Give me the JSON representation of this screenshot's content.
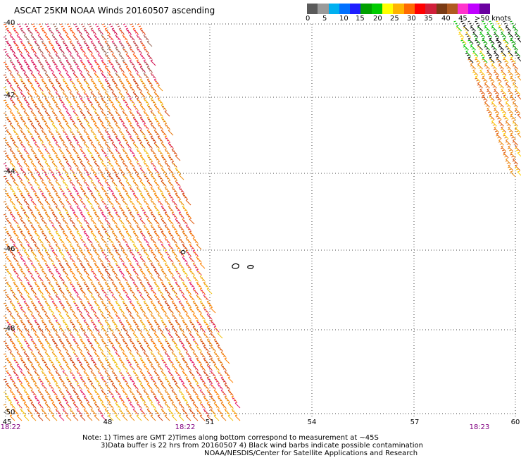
{
  "title": "ASCAT 25KM NOAA Winds 20160507 ascending",
  "colorbar": {
    "colors": [
      "#5a5a5a",
      "#9a9a9a",
      "#00b0f0",
      "#0070ff",
      "#1e1eff",
      "#00a000",
      "#00cc00",
      "#ffff00",
      "#ffb400",
      "#ff6a00",
      "#ff0000",
      "#d0203a",
      "#7a3a14",
      "#b05a20",
      "#ff33cc",
      "#c000ff",
      "#6a00a0"
    ],
    "labels": [
      "0",
      "5",
      "10",
      "15",
      "20",
      "25",
      "30",
      "35",
      "40",
      "45",
      ">50 knots"
    ]
  },
  "axes": {
    "lat_labels": [
      "-40",
      "-42",
      "-44",
      "-46",
      "-48",
      "-50"
    ],
    "lon_labels": [
      "45",
      "48",
      "51",
      "54",
      "57",
      "60"
    ],
    "time_labels": [
      "18:22",
      "18:22",
      "18:23"
    ]
  },
  "notes": [
    "Note: 1) Times are GMT 2)Times along bottom correspond to measurement at ~45S",
    "3)Data buffer is 22 hrs from 20160507 4) Black wind barbs indicate possible contamination",
    "NOAA/NESDIS/Center for Satellite Applications and Research"
  ],
  "swath_colors": {
    "west": [
      "#e87a10",
      "#f09010",
      "#e05a10",
      "#d04010",
      "#f0c010",
      "#e6206a",
      "#ff8000"
    ],
    "west_north": [
      "#e6206a",
      "#d01050",
      "#ff5a10",
      "#c05050",
      "#9a6a5a"
    ],
    "east": [
      "#e05a10",
      "#f09010",
      "#ffd000",
      "#e87a10"
    ],
    "east_north": [
      "#00a000",
      "#00cc00",
      "#000000",
      "#202020",
      "#ffd000"
    ]
  }
}
